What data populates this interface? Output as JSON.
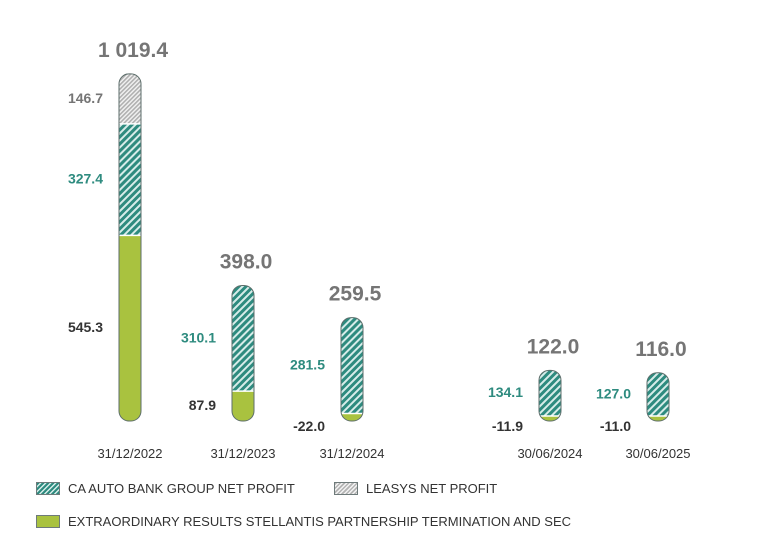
{
  "chart_data": {
    "type": "bar",
    "stacked": true,
    "categories": [
      "31/12/2022",
      "31/12/2023",
      "31/12/2024",
      "30/06/2024",
      "30/06/2025"
    ],
    "series": [
      {
        "name": "EXTRAORDINARY RESULTS STELLANTIS PARTNERSHIP TERMINATION AND SEC",
        "values": [
          545.3,
          87.9,
          -22.0,
          -11.9,
          -11.0
        ],
        "labels": [
          "545.3",
          "87.9",
          "-22.0",
          "-11.9",
          "-11.0"
        ]
      },
      {
        "name": "CA AUTO BANK GROUP NET PROFIT",
        "values": [
          327.4,
          310.1,
          281.5,
          134.1,
          127.0
        ],
        "labels": [
          "327.4",
          "310.1",
          "281.5",
          "134.1",
          "127.0"
        ]
      },
      {
        "name": "LEASYS NET PROFIT",
        "values": [
          146.7,
          null,
          null,
          null,
          null
        ],
        "labels": [
          "146.7",
          "",
          "",
          "",
          ""
        ]
      }
    ],
    "totals": [
      "1 019.4",
      "398.0",
      "259.5",
      "122.0",
      "116.0"
    ],
    "colors": {
      "green": "#a9c23f",
      "teal": "#2e8b7f",
      "grey": "#b4b4b4",
      "total_text": "#757575",
      "teal_text": "#2e8b7f",
      "dark_text": "#333333"
    }
  },
  "legend": {
    "teal_label": "CA AUTO BANK GROUP NET PROFIT",
    "grey_label": "LEASYS NET PROFIT",
    "green_label": "EXTRAORDINARY RESULTS STELLANTIS PARTNERSHIP TERMINATION AND SEC"
  }
}
